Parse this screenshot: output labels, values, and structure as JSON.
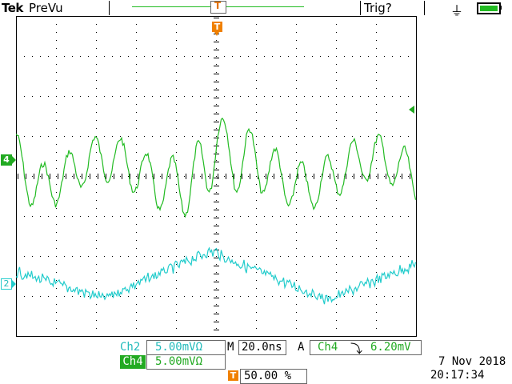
{
  "header": {
    "brand": "Tek",
    "acquisition_status": "PreVu",
    "trigger_status": "Trig?",
    "trigger_position_marker": "T"
  },
  "colors": {
    "ch4": "#22bb22",
    "ch2": "#22cccc",
    "trigger": "#f08000",
    "grid": "#000000"
  },
  "markers": {
    "ch4_ground": "4",
    "ch2_ground": "2",
    "trigger_top": "T",
    "trigger_bottom": "T"
  },
  "readouts": {
    "ch2_label": "Ch2",
    "ch2_scale": "5.00mVΩ",
    "ch4_label": "Ch4",
    "ch4_scale": "5.00mVΩ",
    "timebase_prefix": "M",
    "timebase": "20.0ns",
    "trigger_mode": "A",
    "trigger_source": "Ch4",
    "trigger_slope_icon": "⤵",
    "trigger_level": "6.20mV",
    "trigger_position": "50.00 %",
    "date": "7 Nov 2018",
    "time": "20:17:34"
  },
  "icons": {
    "power": "plug-icon",
    "battery": "battery-icon"
  }
}
